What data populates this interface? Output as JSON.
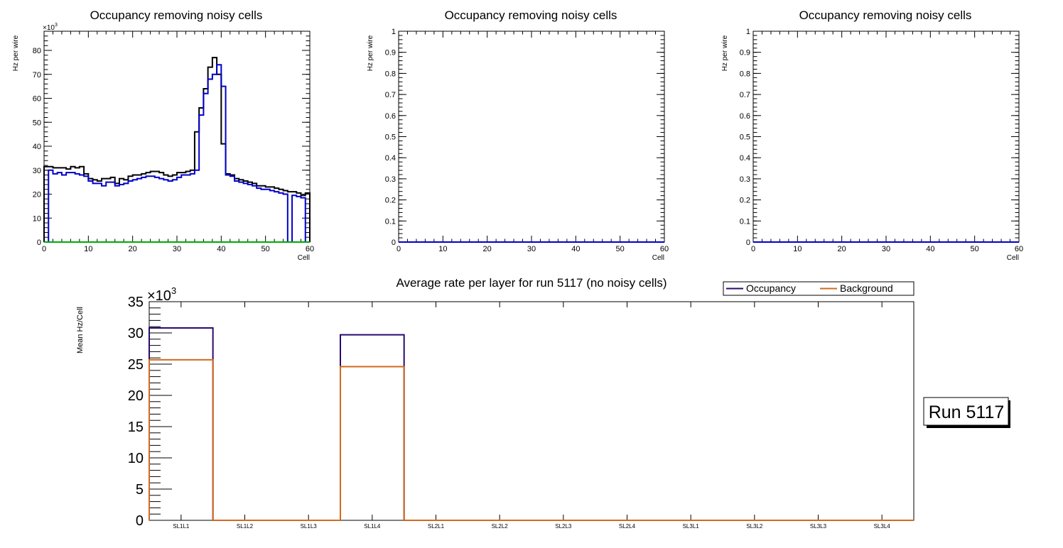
{
  "top_charts": [
    {
      "title": "Occupancy removing noisy cells",
      "ylabel": "Hz per wire",
      "xlabel": "Cell",
      "exponent_base": "×10",
      "exponent_power": "3",
      "x_ticks": [
        "0",
        "10",
        "20",
        "30",
        "40",
        "50",
        "60"
      ],
      "y_ticks": [
        "0",
        "10",
        "20",
        "30",
        "40",
        "50",
        "60",
        "70",
        "80"
      ]
    },
    {
      "title": "Occupancy removing noisy cells",
      "ylabel": "Hz per wire",
      "xlabel": "Cell",
      "x_ticks": [
        "0",
        "10",
        "20",
        "30",
        "40",
        "50",
        "60"
      ],
      "y_ticks": [
        "0",
        "0.1",
        "0.2",
        "0.3",
        "0.4",
        "0.5",
        "0.6",
        "0.7",
        "0.8",
        "0.9",
        "1"
      ]
    },
    {
      "title": "Occupancy removing noisy cells",
      "ylabel": "Hz per wire",
      "xlabel": "Cell",
      "x_ticks": [
        "0",
        "10",
        "20",
        "30",
        "40",
        "50",
        "60"
      ],
      "y_ticks": [
        "0",
        "0.1",
        "0.2",
        "0.3",
        "0.4",
        "0.5",
        "0.6",
        "0.7",
        "0.8",
        "0.9",
        "1"
      ]
    }
  ],
  "bottom_chart": {
    "title": "Average rate per layer for run 5117 (no noisy cells)",
    "ylabel": "Mean Hz/Cell",
    "exponent_base": "×10",
    "exponent_power": "3",
    "y_ticks": [
      "0",
      "5",
      "10",
      "15",
      "20",
      "25",
      "30",
      "35"
    ],
    "legend": [
      {
        "label": "Occupancy",
        "color": "#2a0a6e"
      },
      {
        "label": "Background",
        "color": "#d2691e"
      }
    ],
    "run_label": "Run 5117"
  },
  "chart_data": [
    {
      "type": "step-histogram",
      "title": "Occupancy removing noisy cells",
      "xlabel": "Cell",
      "ylabel": "Hz per wire",
      "xlim": [
        0,
        60
      ],
      "ylim": [
        0,
        88
      ],
      "y_unit_multiplier": 1000,
      "bins": 60,
      "series": [
        {
          "name": "occupancy",
          "color": "#000000",
          "values": [
            31.5,
            31.5,
            31,
            31,
            31,
            30.5,
            31.5,
            31,
            31.5,
            28.5,
            26.5,
            26,
            25.5,
            26.5,
            26.5,
            27,
            24.5,
            26.5,
            26,
            27.5,
            28,
            28,
            28.5,
            29,
            29.5,
            29.5,
            29,
            28,
            27.5,
            28,
            29,
            29,
            29.5,
            30,
            46,
            56,
            64,
            73,
            77,
            70,
            41,
            28.5,
            28,
            26.5,
            26,
            25.5,
            25,
            24.5,
            23.5,
            23.5,
            23,
            23,
            22.5,
            22,
            21.5,
            21,
            21,
            20.5,
            19.5,
            20.5
          ]
        },
        {
          "name": "background",
          "color": "#0000cc",
          "values": [
            0,
            30,
            28.5,
            29,
            28,
            29,
            29,
            28.5,
            28,
            27.5,
            25.5,
            24.5,
            24.5,
            23.5,
            25,
            25,
            23.5,
            24,
            24.5,
            25.5,
            26,
            26.5,
            27,
            27.5,
            27.5,
            27,
            26.5,
            26,
            25.5,
            26,
            27,
            28,
            28,
            28.5,
            30,
            53,
            62,
            68,
            70,
            74,
            65,
            28,
            27.5,
            25.5,
            25,
            24.5,
            24,
            23.5,
            22.5,
            22,
            22,
            21.5,
            21,
            20.5,
            20,
            0,
            19.5,
            19,
            18.5,
            0
          ]
        },
        {
          "name": "baseline",
          "color": "#00aa00",
          "values": [
            0,
            0,
            0,
            0,
            0,
            0,
            0,
            0,
            0,
            0,
            0,
            0,
            0,
            0,
            0,
            0,
            0,
            0,
            0,
            0,
            0,
            0,
            0,
            0,
            0,
            0,
            0,
            0,
            0,
            0,
            0,
            0,
            0,
            0,
            0,
            0,
            0,
            0,
            0,
            0,
            0,
            0,
            0,
            0,
            0,
            0,
            0,
            0,
            0,
            0,
            0,
            0,
            0,
            0,
            0,
            0,
            0,
            0,
            0,
            0
          ]
        }
      ]
    },
    {
      "type": "step-histogram",
      "title": "Occupancy removing noisy cells",
      "xlabel": "Cell",
      "ylabel": "Hz per wire",
      "xlim": [
        0,
        60
      ],
      "ylim": [
        0,
        1
      ],
      "series": [
        {
          "name": "occupancy",
          "color": "#0000cc",
          "values": [
            0
          ]
        }
      ]
    },
    {
      "type": "step-histogram",
      "title": "Occupancy removing noisy cells",
      "xlabel": "Cell",
      "ylabel": "Hz per wire",
      "xlim": [
        0,
        60
      ],
      "ylim": [
        0,
        1
      ],
      "series": [
        {
          "name": "occupancy",
          "color": "#0000cc",
          "values": [
            0
          ]
        }
      ]
    },
    {
      "type": "bar",
      "title": "Average rate per layer for run 5117 (no noisy cells)",
      "ylabel": "Mean Hz/Cell",
      "ylim": [
        0,
        35
      ],
      "y_unit_multiplier": 1000,
      "categories": [
        "SL1L1",
        "SL1L2",
        "SL1L3",
        "SL1L4",
        "SL2L1",
        "SL2L2",
        "SL2L3",
        "SL2L4",
        "SL3L1",
        "SL3L2",
        "SL3L3",
        "SL3L4"
      ],
      "series": [
        {
          "name": "Occupancy",
          "color": "#2a0a6e",
          "values": [
            30.8,
            0,
            0,
            29.7,
            0,
            0,
            0,
            0,
            0,
            0,
            0,
            0
          ]
        },
        {
          "name": "Background",
          "color": "#d2691e",
          "values": [
            25.7,
            0,
            0,
            24.6,
            0,
            0,
            0,
            0,
            0,
            0,
            0,
            0
          ]
        }
      ]
    }
  ]
}
